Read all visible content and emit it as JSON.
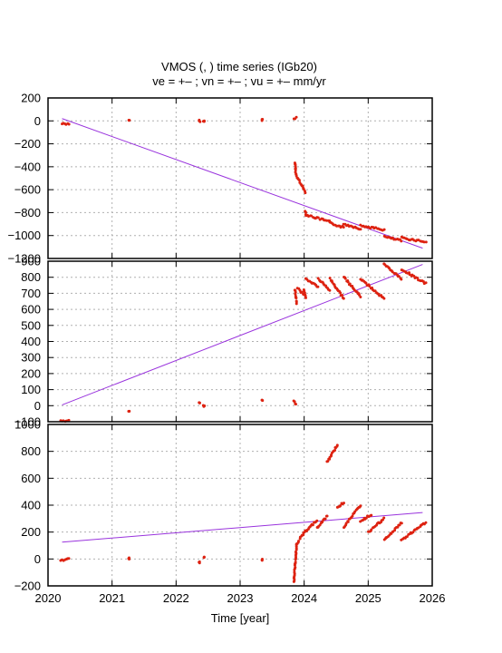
{
  "title": {
    "line1": "VMOS (, ) time series (IGb20)",
    "line2": "ve =  +– ; vn =  +– ; vu =  +–  mm/yr"
  },
  "colors": {
    "data": "#dd2211",
    "trend": "#9933dd",
    "grid": "#b0b0b0",
    "axis": "#000000"
  },
  "chart_data": [
    {
      "type": "scatter",
      "panel": "east",
      "ylabel": "",
      "xlim": [
        2020,
        2026
      ],
      "ylim": [
        -1200,
        200
      ],
      "yticks": [
        -1200,
        -1000,
        -800,
        -600,
        -400,
        -200,
        0,
        200
      ],
      "xticks": [
        2020,
        2021,
        2022,
        2023,
        2024,
        2025,
        2026
      ],
      "grid": true,
      "trend": {
        "x": [
          2020.22,
          2025.85
        ],
        "y": [
          20,
          -1110
        ]
      },
      "segments": [
        {
          "x": [
            2020.22,
            2020.33
          ],
          "y": [
            -25,
            -25
          ]
        },
        {
          "x": [
            2021.26,
            2021.27
          ],
          "y": [
            0,
            0
          ]
        },
        {
          "x": [
            2022.36,
            2022.37
          ],
          "y": [
            0,
            0
          ]
        },
        {
          "x": [
            2022.43,
            2022.44
          ],
          "y": [
            -5,
            -5
          ]
        },
        {
          "x": [
            2023.34,
            2023.35
          ],
          "y": [
            10,
            10
          ]
        },
        {
          "x": [
            2023.84,
            2023.88
          ],
          "y": [
            15,
            30
          ]
        },
        {
          "x": [
            2023.86,
            2023.87
          ],
          "y": [
            -360,
            -460
          ]
        },
        {
          "x": [
            2023.87,
            2024.02
          ],
          "y": [
            -470,
            -620
          ]
        },
        {
          "x": [
            2024.02,
            2024.03
          ],
          "y": [
            -790,
            -810
          ]
        },
        {
          "x": [
            2024.03,
            2024.4
          ],
          "y": [
            -820,
            -880
          ]
        },
        {
          "x": [
            2024.4,
            2024.62
          ],
          "y": [
            -890,
            -930
          ]
        },
        {
          "x": [
            2024.62,
            2024.88
          ],
          "y": [
            -900,
            -940
          ]
        },
        {
          "x": [
            2024.88,
            2025.25
          ],
          "y": [
            -915,
            -950
          ]
        },
        {
          "x": [
            2025.25,
            2025.52
          ],
          "y": [
            -1010,
            -1045
          ]
        },
        {
          "x": [
            2025.52,
            2025.9
          ],
          "y": [
            -1020,
            -1055
          ]
        }
      ]
    },
    {
      "type": "scatter",
      "panel": "north",
      "ylabel": "",
      "xlim": [
        2020,
        2026
      ],
      "ylim": [
        -100,
        900
      ],
      "yticks": [
        -100,
        0,
        100,
        200,
        300,
        400,
        500,
        600,
        700,
        800,
        900
      ],
      "xticks": [
        2020,
        2021,
        2022,
        2023,
        2024,
        2025,
        2026
      ],
      "grid": true,
      "trend": {
        "x": [
          2020.22,
          2025.85
        ],
        "y": [
          5,
          880
        ]
      },
      "segments": [
        {
          "x": [
            2020.2,
            2020.33
          ],
          "y": [
            -95,
            -95
          ]
        },
        {
          "x": [
            2021.26,
            2021.27
          ],
          "y": [
            -30,
            -30
          ]
        },
        {
          "x": [
            2022.36,
            2022.37
          ],
          "y": [
            15,
            15
          ]
        },
        {
          "x": [
            2022.43,
            2022.44
          ],
          "y": [
            0,
            0
          ]
        },
        {
          "x": [
            2023.34,
            2023.35
          ],
          "y": [
            30,
            30
          ]
        },
        {
          "x": [
            2023.84,
            2023.87
          ],
          "y": [
            30,
            5
          ]
        },
        {
          "x": [
            2023.86,
            2023.88
          ],
          "y": [
            720,
            640
          ]
        },
        {
          "x": [
            2023.9,
            2024.0
          ],
          "y": [
            730,
            690
          ]
        },
        {
          "x": [
            2024.0,
            2024.03
          ],
          "y": [
            720,
            670
          ]
        },
        {
          "x": [
            2024.03,
            2024.22
          ],
          "y": [
            790,
            740
          ]
        },
        {
          "x": [
            2024.22,
            2024.4
          ],
          "y": [
            790,
            720
          ]
        },
        {
          "x": [
            2024.4,
            2024.62
          ],
          "y": [
            790,
            670
          ]
        },
        {
          "x": [
            2024.62,
            2024.88
          ],
          "y": [
            800,
            680
          ]
        },
        {
          "x": [
            2024.88,
            2025.25
          ],
          "y": [
            790,
            665
          ]
        },
        {
          "x": [
            2025.25,
            2025.52
          ],
          "y": [
            880,
            790
          ]
        },
        {
          "x": [
            2025.52,
            2025.9
          ],
          "y": [
            850,
            760
          ]
        }
      ]
    },
    {
      "type": "scatter",
      "panel": "up",
      "ylabel": "",
      "xlim": [
        2020,
        2026
      ],
      "ylim": [
        -200,
        1000
      ],
      "yticks": [
        -200,
        0,
        200,
        400,
        600,
        800,
        1000
      ],
      "xticks": [
        2020,
        2021,
        2022,
        2023,
        2024,
        2025,
        2026
      ],
      "xticklabels": [
        "2020",
        "2021",
        "2022",
        "2023",
        "2024",
        "2025",
        "2026"
      ],
      "xlabel": "Time [year]",
      "grid": true,
      "trend": {
        "x": [
          2020.22,
          2025.85
        ],
        "y": [
          125,
          345
        ]
      },
      "segments": [
        {
          "x": [
            2020.2,
            2020.33
          ],
          "y": [
            -10,
            0
          ]
        },
        {
          "x": [
            2021.26,
            2021.27
          ],
          "y": [
            0,
            5
          ]
        },
        {
          "x": [
            2022.36,
            2022.37
          ],
          "y": [
            -25,
            -25
          ]
        },
        {
          "x": [
            2022.43,
            2022.44
          ],
          "y": [
            5,
            10
          ]
        },
        {
          "x": [
            2023.34,
            2023.35
          ],
          "y": [
            -5,
            -5
          ]
        },
        {
          "x": [
            2023.84,
            2023.88
          ],
          "y": [
            -170,
            100
          ]
        },
        {
          "x": [
            2023.88,
            2024.02
          ],
          "y": [
            110,
            210
          ]
        },
        {
          "x": [
            2024.02,
            2024.2
          ],
          "y": [
            200,
            290
          ]
        },
        {
          "x": [
            2024.2,
            2024.36
          ],
          "y": [
            230,
            320
          ]
        },
        {
          "x": [
            2024.36,
            2024.52
          ],
          "y": [
            720,
            850
          ]
        },
        {
          "x": [
            2024.52,
            2024.62
          ],
          "y": [
            380,
            420
          ]
        },
        {
          "x": [
            2024.62,
            2024.88
          ],
          "y": [
            240,
            400
          ]
        },
        {
          "x": [
            2024.88,
            2025.05
          ],
          "y": [
            280,
            330
          ]
        },
        {
          "x": [
            2025.0,
            2025.25
          ],
          "y": [
            200,
            300
          ]
        },
        {
          "x": [
            2025.25,
            2025.52
          ],
          "y": [
            140,
            270
          ]
        },
        {
          "x": [
            2025.52,
            2025.9
          ],
          "y": [
            140,
            270
          ]
        }
      ]
    }
  ]
}
